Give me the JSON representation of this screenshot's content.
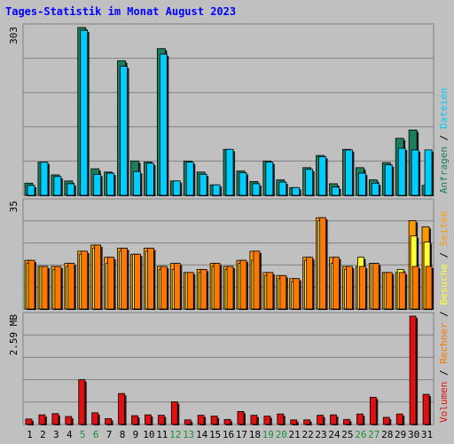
{
  "title": "Tages-Statistik im Monat August 2023",
  "colors": {
    "background": "#c0c0c0",
    "title": "#0000ff",
    "anfragen": "#1b7f5c",
    "dateien": "#00ccff",
    "seiten": "#ff9900",
    "besuche": "#ffff33",
    "rechner": "#ff7700",
    "volumen": "#e01010",
    "weekend_label": "#1b8f3a",
    "weekday_label": "#000000",
    "grid": "#808080"
  },
  "chart_data": [
    {
      "type": "bar",
      "panel": "anfragen-dateien",
      "ymax_label": "303",
      "ylim": [
        0,
        303
      ],
      "categories": [
        "1",
        "2",
        "3",
        "4",
        "5",
        "6",
        "7",
        "8",
        "9",
        "10",
        "11",
        "12",
        "13",
        "14",
        "15",
        "16",
        "17",
        "18",
        "19",
        "20",
        "21",
        "22",
        "23",
        "24",
        "25",
        "26",
        "27",
        "28",
        "29",
        "30",
        "31"
      ],
      "weekend_days": [
        "5",
        "6",
        "12",
        "13",
        "19",
        "20",
        "26",
        "27"
      ],
      "series": [
        {
          "name": "Anfragen",
          "color": "#1b7f5c",
          "values": [
            22,
            60,
            37,
            26,
            303,
            48,
            42,
            243,
            62,
            60,
            265,
            26,
            62,
            42,
            19,
            83,
            44,
            25,
            62,
            28,
            14,
            50,
            72,
            21,
            83,
            50,
            28,
            59,
            103,
            118,
            18
          ]
        },
        {
          "name": "Dateien",
          "color": "#00ccff",
          "values": [
            18,
            60,
            34,
            21,
            298,
            38,
            40,
            233,
            43,
            58,
            255,
            26,
            60,
            38,
            19,
            83,
            41,
            21,
            60,
            24,
            14,
            47,
            70,
            15,
            82,
            40,
            22,
            55,
            85,
            82,
            82
          ]
        }
      ]
    },
    {
      "type": "bar",
      "panel": "seiten-besuche-rechner",
      "ymax_label": "35",
      "ylim": [
        0,
        35
      ],
      "categories": [
        "1",
        "2",
        "3",
        "4",
        "5",
        "6",
        "7",
        "8",
        "9",
        "10",
        "11",
        "12",
        "13",
        "14",
        "15",
        "16",
        "17",
        "18",
        "19",
        "20",
        "21",
        "22",
        "23",
        "24",
        "25",
        "26",
        "27",
        "28",
        "29",
        "30",
        "31"
      ],
      "series": [
        {
          "name": "Seiten",
          "color": "#ff9900",
          "values": [
            16,
            14,
            14,
            15,
            19,
            21,
            17,
            20,
            18,
            20,
            14,
            15,
            12,
            13,
            15,
            14,
            16,
            19,
            12,
            11,
            10,
            17,
            30,
            17,
            14,
            14,
            15,
            12,
            12,
            29,
            27
          ]
        },
        {
          "name": "Besuche",
          "color": "#ffff33",
          "values": [
            15,
            14,
            13,
            14,
            18,
            20,
            15,
            19,
            18,
            19,
            13,
            13,
            12,
            12,
            14,
            13,
            15,
            16,
            11,
            10,
            9,
            16,
            29,
            15,
            13,
            17,
            15,
            12,
            13,
            24,
            22
          ]
        },
        {
          "name": "Rechner",
          "color": "#ff7700",
          "values": [
            16,
            14,
            14,
            15,
            19,
            21,
            17,
            20,
            18,
            20,
            14,
            15,
            12,
            13,
            15,
            14,
            16,
            19,
            12,
            11,
            10,
            17,
            30,
            17,
            14,
            14,
            15,
            12,
            12,
            14,
            14
          ]
        }
      ]
    },
    {
      "type": "bar",
      "panel": "volumen",
      "ymax_label": "2.59 MB",
      "ylim": [
        0,
        2.59
      ],
      "categories": [
        "1",
        "2",
        "3",
        "4",
        "5",
        "6",
        "7",
        "8",
        "9",
        "10",
        "11",
        "12",
        "13",
        "14",
        "15",
        "16",
        "17",
        "18",
        "19",
        "20",
        "21",
        "22",
        "23",
        "24",
        "25",
        "26",
        "27",
        "28",
        "29",
        "30",
        "31"
      ],
      "series": [
        {
          "name": "Volumen",
          "color": "#e01010",
          "values": [
            0.13,
            0.23,
            0.26,
            0.19,
            1.07,
            0.28,
            0.14,
            0.74,
            0.21,
            0.23,
            0.22,
            0.54,
            0.11,
            0.22,
            0.2,
            0.12,
            0.31,
            0.22,
            0.2,
            0.25,
            0.11,
            0.11,
            0.22,
            0.23,
            0.12,
            0.25,
            0.65,
            0.17,
            0.25,
            2.59,
            0.72
          ]
        }
      ]
    }
  ],
  "legend": {
    "right_side_top": [
      "Anfragen",
      "Dateien"
    ],
    "right_side_bottom": [
      "Volumen",
      "Rechner",
      "Besuche",
      "Seiten"
    ],
    "separator": " / "
  }
}
